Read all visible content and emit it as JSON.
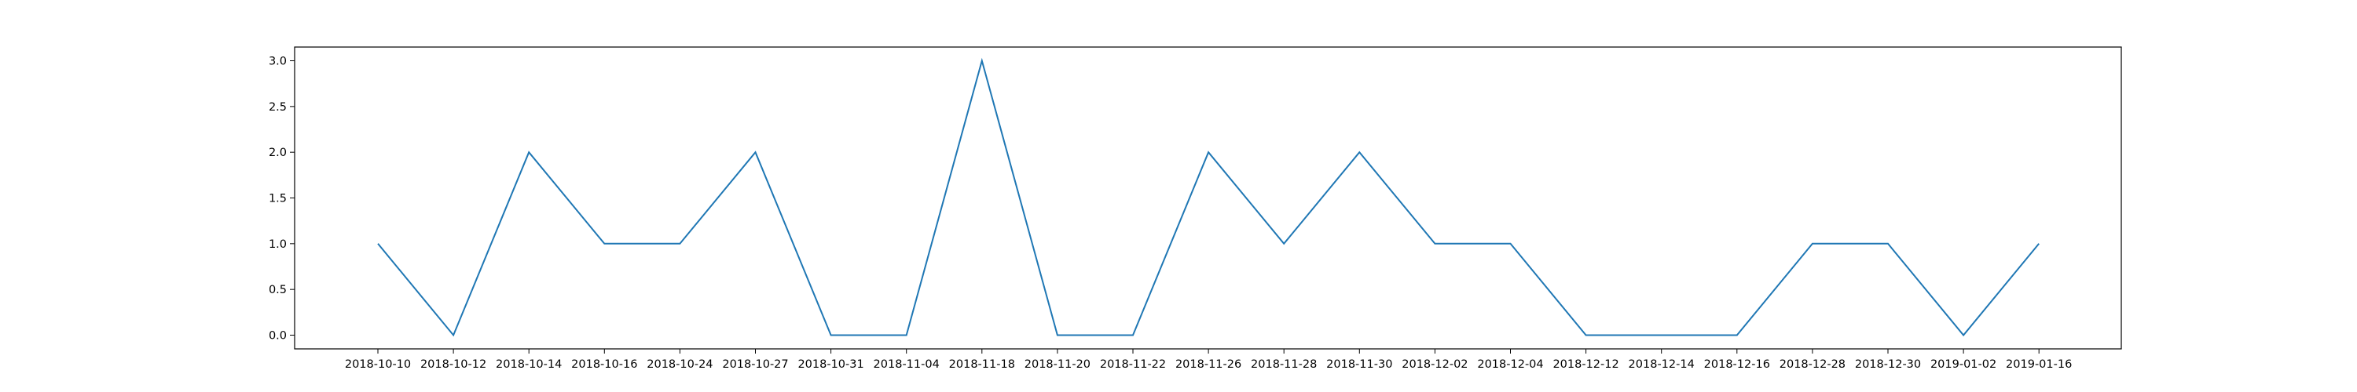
{
  "chart_data": {
    "type": "line",
    "title": "",
    "xlabel": "",
    "ylabel": "",
    "categories": [
      "2018-10-10",
      "2018-10-12",
      "2018-10-14",
      "2018-10-16",
      "2018-10-24",
      "2018-10-27",
      "2018-10-31",
      "2018-11-04",
      "2018-11-18",
      "2018-11-20",
      "2018-11-22",
      "2018-11-26",
      "2018-11-28",
      "2018-11-30",
      "2018-12-02",
      "2018-12-04",
      "2018-12-12",
      "2018-12-14",
      "2018-12-16",
      "2018-12-28",
      "2018-12-30",
      "2019-01-02",
      "2019-01-16"
    ],
    "series": [
      {
        "values": [
          1,
          0,
          2,
          1,
          1,
          2,
          0,
          0,
          3,
          0,
          0,
          2,
          1,
          2,
          1,
          1,
          0,
          0,
          0,
          1,
          1,
          0,
          1
        ],
        "color": "#1f77b4"
      }
    ],
    "yticks": [
      "0.0",
      "0.5",
      "1.0",
      "1.5",
      "2.0",
      "2.5",
      "3.0"
    ],
    "ylim": [
      -0.15,
      3.15
    ],
    "grid": false,
    "legend": "none"
  }
}
